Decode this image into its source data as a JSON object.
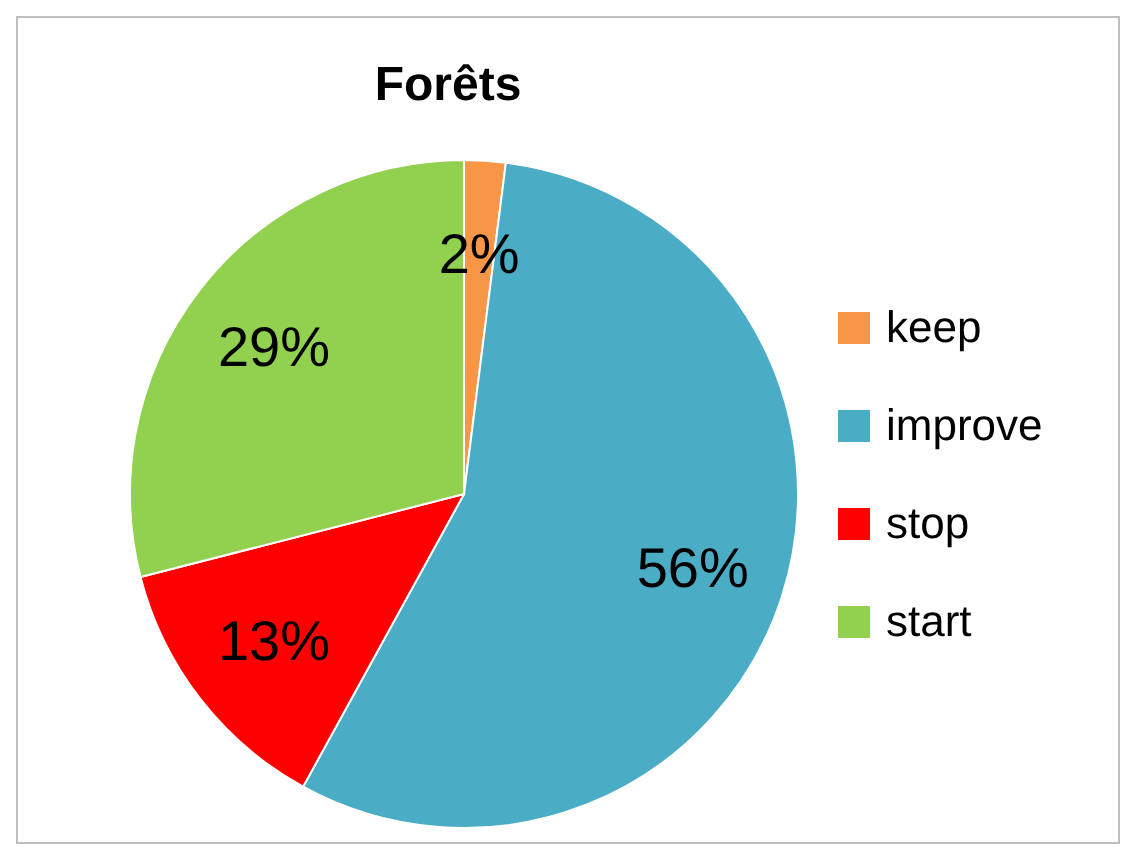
{
  "chart_data": {
    "type": "pie",
    "title": "Forêts",
    "categories": [
      "keep",
      "improve",
      "stop",
      "start"
    ],
    "values": [
      2,
      56,
      13,
      29
    ],
    "colors": [
      "#f79646",
      "#4bacc6",
      "#ff0000",
      "#92d050"
    ],
    "value_labels": [
      "2%",
      "56%",
      "13%",
      "29%"
    ],
    "legend": "right"
  }
}
